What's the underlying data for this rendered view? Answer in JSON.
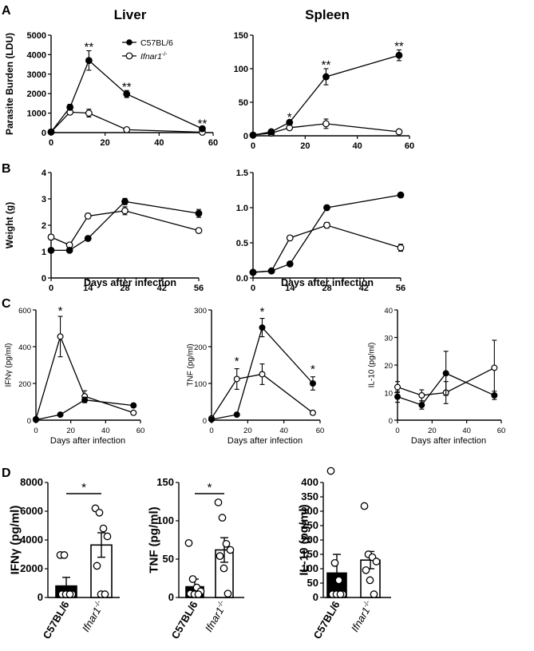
{
  "figure": {
    "panel_labels": [
      "A",
      "B",
      "C",
      "D"
    ],
    "col_titles": [
      "Liver",
      "Spleen"
    ],
    "legend": {
      "wt": "C57BL/6",
      "ko": "Ifnar1",
      "ko_sup": "-/-"
    },
    "xlabel": "Days after infection"
  },
  "chart_data": [
    {
      "id": "a1",
      "type": "line",
      "ylabel": "Parasite Burden (LDU)",
      "xlim": [
        0,
        60
      ],
      "ylim": [
        0,
        5000
      ],
      "xticks": [
        0,
        20,
        40,
        60
      ],
      "yticks": [
        0,
        1000,
        2000,
        3000,
        4000,
        5000
      ],
      "series": [
        {
          "name": "C57BL/6",
          "x": [
            0,
            7,
            14,
            28,
            56
          ],
          "y": [
            30,
            1300,
            3700,
            1980,
            200
          ],
          "err": [
            0,
            150,
            500,
            180,
            60
          ]
        },
        {
          "name": "Ifnar1-/-",
          "x": [
            0,
            7,
            14,
            28,
            56
          ],
          "y": [
            30,
            1050,
            1000,
            150,
            20
          ],
          "err": [
            0,
            100,
            200,
            40,
            10
          ]
        }
      ],
      "annotations": [
        {
          "x": 14,
          "y": 4200,
          "text": "**"
        },
        {
          "x": 28,
          "y": 2160,
          "text": "**"
        },
        {
          "x": 56,
          "y": 260,
          "text": "**"
        }
      ]
    },
    {
      "id": "a2",
      "type": "line",
      "ylabel": "",
      "xlim": [
        0,
        60
      ],
      "ylim": [
        0,
        150
      ],
      "xticks": [
        0,
        20,
        40,
        60
      ],
      "yticks": [
        0,
        50,
        100,
        150
      ],
      "series": [
        {
          "name": "C57BL/6",
          "x": [
            0,
            7,
            14,
            28,
            56
          ],
          "y": [
            1,
            6,
            20,
            88,
            120
          ],
          "err": [
            0,
            1,
            2,
            12,
            8
          ]
        },
        {
          "name": "Ifnar1-/-",
          "x": [
            0,
            7,
            14,
            28,
            56
          ],
          "y": [
            1,
            4,
            12,
            18,
            6
          ],
          "err": [
            0,
            1,
            3,
            7,
            2
          ]
        }
      ],
      "annotations": [
        {
          "x": 14,
          "y": 22,
          "text": "*"
        },
        {
          "x": 28,
          "y": 100,
          "text": "**"
        },
        {
          "x": 56,
          "y": 128,
          "text": "**"
        }
      ]
    },
    {
      "id": "b1",
      "type": "line",
      "ylabel": "Weight (g)",
      "xlim": [
        0,
        56
      ],
      "ylim": [
        0,
        4
      ],
      "xticks": [
        0,
        14,
        28,
        42,
        56
      ],
      "yticks": [
        0,
        1,
        2,
        3,
        4
      ],
      "series": [
        {
          "name": "C57BL/6",
          "x": [
            0,
            7,
            14,
            28,
            56
          ],
          "y": [
            1.05,
            1.05,
            1.5,
            2.9,
            2.45
          ],
          "err": [
            0.05,
            0.05,
            0.08,
            0.12,
            0.15
          ]
        },
        {
          "name": "Ifnar1-/-",
          "x": [
            0,
            7,
            14,
            28,
            56
          ],
          "y": [
            1.55,
            1.25,
            2.35,
            2.55,
            1.8
          ],
          "err": [
            0.1,
            0.08,
            0.1,
            0.15,
            0.08
          ]
        }
      ],
      "annotations": []
    },
    {
      "id": "b2",
      "type": "line",
      "ylabel": "",
      "xlim": [
        0,
        56
      ],
      "ylim": [
        0,
        1.5
      ],
      "xticks": [
        0,
        14,
        28,
        42,
        56
      ],
      "yticks": [
        0,
        0.5,
        1.0,
        1.5
      ],
      "yticklabels": [
        "0.0",
        "0.5",
        "1.0",
        "1.5"
      ],
      "series": [
        {
          "name": "C57BL/6",
          "x": [
            0,
            7,
            14,
            28,
            56
          ],
          "y": [
            0.08,
            0.1,
            0.2,
            1.0,
            1.18
          ],
          "err": [
            0.01,
            0.01,
            0.02,
            0.03,
            0.03
          ]
        },
        {
          "name": "Ifnar1-/-",
          "x": [
            0,
            7,
            14,
            28,
            56
          ],
          "y": [
            0.08,
            0.1,
            0.57,
            0.75,
            0.43
          ],
          "err": [
            0.01,
            0.01,
            0.02,
            0.04,
            0.05
          ]
        }
      ],
      "annotations": []
    },
    {
      "id": "c1",
      "type": "line",
      "ylabel": "IFNγ (pg/ml)",
      "xlim": [
        0,
        60
      ],
      "ylim": [
        0,
        600
      ],
      "xticks": [
        0,
        20,
        40,
        60
      ],
      "yticks": [
        0,
        200,
        400,
        600
      ],
      "series": [
        {
          "name": "C57BL/6",
          "x": [
            0,
            14,
            28,
            56
          ],
          "y": [
            2,
            30,
            110,
            80
          ],
          "err": [
            0,
            5,
            15,
            10
          ]
        },
        {
          "name": "Ifnar1-/-",
          "x": [
            0,
            14,
            28,
            56
          ],
          "y": [
            5,
            455,
            130,
            40
          ],
          "err": [
            0,
            110,
            30,
            8
          ]
        }
      ],
      "annotations": [
        {
          "x": 14,
          "y": 575,
          "text": "*"
        }
      ]
    },
    {
      "id": "c2",
      "type": "line",
      "ylabel": "TNF (pg/ml)",
      "xlim": [
        0,
        60
      ],
      "ylim": [
        0,
        300
      ],
      "xticks": [
        0,
        20,
        40,
        60
      ],
      "yticks": [
        0,
        100,
        200,
        300
      ],
      "series": [
        {
          "name": "C57BL/6",
          "x": [
            0,
            14,
            28,
            56
          ],
          "y": [
            2,
            15,
            252,
            100
          ],
          "err": [
            0,
            3,
            25,
            18
          ]
        },
        {
          "name": "Ifnar1-/-",
          "x": [
            0,
            14,
            28,
            56
          ],
          "y": [
            5,
            112,
            125,
            20
          ],
          "err": [
            0,
            28,
            28,
            5
          ]
        }
      ],
      "annotations": [
        {
          "x": 14,
          "y": 150,
          "text": "*"
        },
        {
          "x": 28,
          "y": 285,
          "text": "*"
        },
        {
          "x": 56,
          "y": 128,
          "text": "*"
        }
      ]
    },
    {
      "id": "c3",
      "type": "line",
      "ylabel": "IL-10 (pg/ml)",
      "xlim": [
        0,
        60
      ],
      "ylim": [
        0,
        40
      ],
      "xticks": [
        0,
        20,
        40,
        60
      ],
      "yticks": [
        0,
        10,
        20,
        30,
        40
      ],
      "series": [
        {
          "name": "C57BL/6",
          "x": [
            0,
            14,
            28,
            56
          ],
          "y": [
            8.5,
            5.5,
            17,
            9
          ],
          "err": [
            2,
            1.5,
            8,
            1.5
          ]
        },
        {
          "name": "Ifnar1-/-",
          "x": [
            0,
            14,
            28,
            56
          ],
          "y": [
            12,
            9,
            10,
            19
          ],
          "err": [
            2,
            2,
            4,
            10
          ]
        }
      ],
      "annotations": []
    },
    {
      "id": "d1",
      "type": "bar",
      "ylabel": "IFNγ (pg/ml)",
      "ylim": [
        0,
        8000
      ],
      "yticks": [
        0,
        2000,
        4000,
        6000,
        8000
      ],
      "categories": [
        "C57BL/6",
        "Ifnar1-/-"
      ],
      "values": [
        800,
        3650
      ],
      "err": [
        600,
        850
      ],
      "points": [
        [
          2950,
          2950,
          20,
          20,
          20,
          20,
          20
        ],
        [
          6200,
          5900,
          4800,
          4250,
          2200,
          150,
          20
        ]
      ],
      "annotations": [
        {
          "text": "*"
        }
      ]
    },
    {
      "id": "d2",
      "type": "bar",
      "ylabel": "TNF (pg/ml)",
      "ylim": [
        0,
        150
      ],
      "yticks": [
        0,
        50,
        100,
        150
      ],
      "categories": [
        "C57BL/6",
        "Ifnar1-/-"
      ],
      "values": [
        14,
        62
      ],
      "err": [
        10,
        16
      ],
      "points": [
        [
          71,
          24,
          13,
          8,
          5,
          3,
          2
        ],
        [
          124,
          104,
          70,
          62,
          54,
          38,
          5
        ]
      ],
      "annotations": [
        {
          "text": "*"
        }
      ]
    },
    {
      "id": "d3",
      "type": "bar",
      "ylabel": "IL-10 (pg/ml)",
      "ylim": [
        0,
        400
      ],
      "yticks": [
        0,
        50,
        100,
        150,
        200,
        250,
        300,
        350,
        400
      ],
      "categories": [
        "C57BL/6",
        "Ifnar1-/-"
      ],
      "values": [
        85,
        130
      ],
      "err": [
        65,
        30
      ],
      "points": [
        [
          440,
          120,
          60,
          10,
          5,
          5,
          5
        ],
        [
          318,
          150,
          140,
          125,
          95,
          60,
          10
        ]
      ],
      "annotations": []
    }
  ]
}
